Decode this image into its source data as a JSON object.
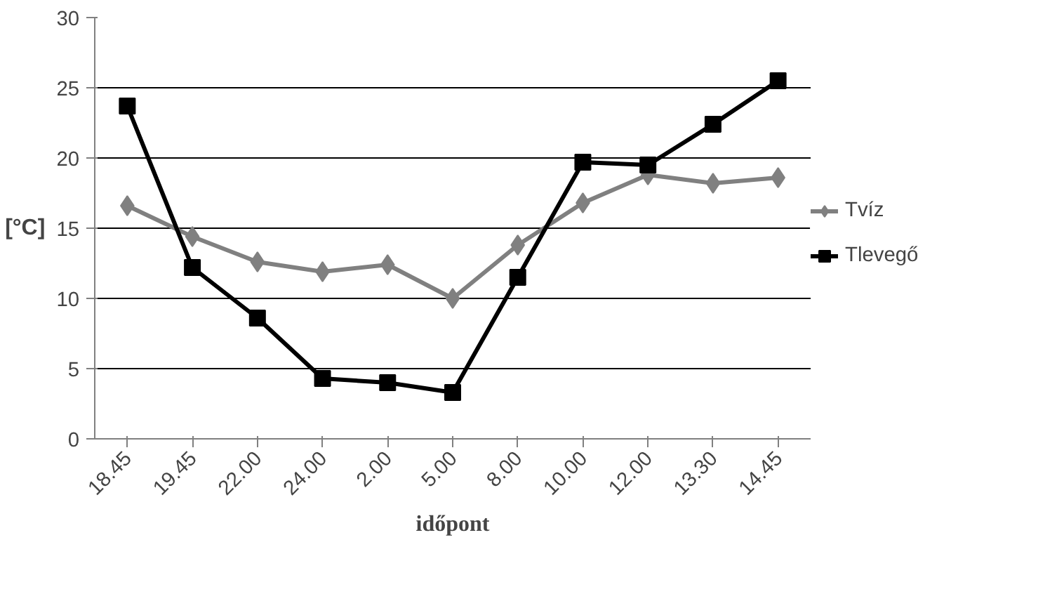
{
  "chart_data": {
    "type": "line",
    "xlabel": "időpont",
    "ylabel": "[°C]",
    "categories": [
      "18.45",
      "19.45",
      "22.00",
      "24.00",
      "2.00",
      "5.00",
      "8.00",
      "10.00",
      "12.00",
      "13.30",
      "14.45"
    ],
    "series": [
      {
        "name": "Tvíz",
        "color": "#808080",
        "marker": "diamond",
        "values": [
          16.6,
          14.4,
          12.6,
          11.9,
          12.4,
          10.0,
          13.8,
          16.8,
          18.8,
          18.2,
          18.6
        ]
      },
      {
        "name": "Tlevegő",
        "color": "#000000",
        "marker": "square",
        "values": [
          23.7,
          12.2,
          8.6,
          4.3,
          4.0,
          3.3,
          11.5,
          19.7,
          19.5,
          22.4,
          25.5
        ]
      }
    ],
    "ylim": [
      0,
      30
    ],
    "yticks": [
      0,
      5,
      10,
      15,
      20,
      25,
      30
    ],
    "grid": "y",
    "legend": "right",
    "line_style": "solid"
  }
}
